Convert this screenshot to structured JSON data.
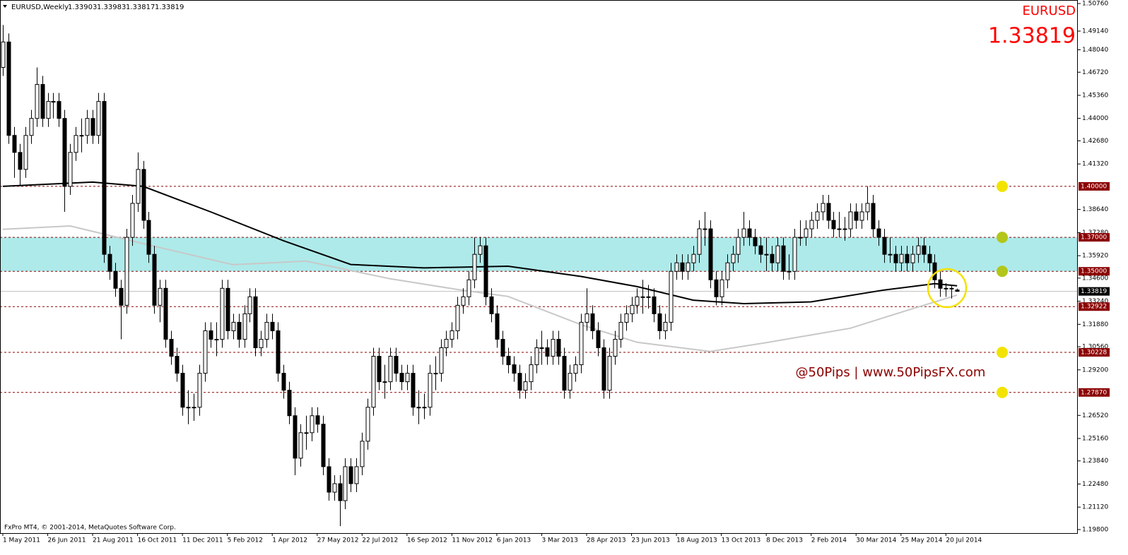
{
  "chart_data": {
    "type": "candlestick",
    "title": "EURUSD,Weekly",
    "symbol": "EURUSD",
    "watermark": "@50Pips | www.50PipsFX.com",
    "footer": "FxPro MT4, © 2001-2014, MetaQuotes Software Corp.",
    "bull_color": "#ffffff",
    "bear_color": "#000000",
    "open": [
      1.47,
      1.485,
      1.43,
      1.42,
      1.41,
      1.43,
      1.44,
      1.46,
      1.44,
      1.45,
      1.45,
      1.44,
      1.4,
      1.42,
      1.43,
      1.43,
      1.44,
      1.43,
      1.45,
      1.36,
      1.35,
      1.34,
      1.33,
      1.37,
      1.39,
      1.41,
      1.38,
      1.36,
      1.33,
      1.34,
      1.31,
      1.3,
      1.29,
      1.27,
      1.27,
      1.27,
      1.29,
      1.315,
      1.31,
      1.31,
      1.34,
      1.315,
      1.32,
      1.31,
      1.325,
      1.335,
      1.305,
      1.31,
      1.32,
      1.315,
      1.29,
      1.28,
      1.265,
      1.24,
      1.255,
      1.255,
      1.265,
      1.26,
      1.235,
      1.22,
      1.225,
      1.215,
      1.235,
      1.225,
      1.235,
      1.25,
      1.27,
      1.3,
      1.285,
      1.285,
      1.3,
      1.29,
      1.285,
      1.29,
      1.27,
      1.27,
      1.27,
      1.29,
      1.29,
      1.305,
      1.31,
      1.315,
      1.33,
      1.335,
      1.345,
      1.36,
      1.365,
      1.335,
      1.325,
      1.31,
      1.3,
      1.295,
      1.29,
      1.28,
      1.285,
      1.295,
      1.305,
      1.305,
      1.3,
      1.31,
      1.3,
      1.28,
      1.29,
      1.295,
      1.32,
      1.325,
      1.315,
      1.305,
      1.28,
      1.3,
      1.31,
      1.32,
      1.325,
      1.33,
      1.335,
      1.335,
      1.335,
      1.325,
      1.315,
      1.32,
      1.35,
      1.355,
      1.35,
      1.355,
      1.36,
      1.375,
      1.375,
      1.345,
      1.335,
      1.345,
      1.355,
      1.36,
      1.37,
      1.375,
      1.37,
      1.365,
      1.36,
      1.36,
      1.355,
      1.365,
      1.35,
      1.35,
      1.37,
      1.37,
      1.375,
      1.38,
      1.385,
      1.39,
      1.38,
      1.375,
      1.375,
      1.375,
      1.385,
      1.38,
      1.385,
      1.39,
      1.375,
      1.37,
      1.36,
      1.36,
      1.355,
      1.36,
      1.355,
      1.36,
      1.365,
      1.36,
      1.355,
      1.345,
      1.34,
      1.34,
      1.33903
    ],
    "high": [
      1.495,
      1.49,
      1.435,
      1.425,
      1.435,
      1.445,
      1.47,
      1.465,
      1.455,
      1.455,
      1.455,
      1.445,
      1.425,
      1.435,
      1.44,
      1.445,
      1.445,
      1.455,
      1.455,
      1.365,
      1.355,
      1.345,
      1.375,
      1.395,
      1.42,
      1.415,
      1.385,
      1.365,
      1.345,
      1.345,
      1.315,
      1.305,
      1.295,
      1.28,
      1.278,
      1.295,
      1.32,
      1.32,
      1.32,
      1.345,
      1.345,
      1.325,
      1.325,
      1.33,
      1.34,
      1.34,
      1.315,
      1.325,
      1.325,
      1.32,
      1.295,
      1.285,
      1.27,
      1.26,
      1.265,
      1.27,
      1.27,
      1.265,
      1.24,
      1.23,
      1.23,
      1.24,
      1.24,
      1.24,
      1.255,
      1.275,
      1.305,
      1.305,
      1.295,
      1.305,
      1.305,
      1.295,
      1.295,
      1.295,
      1.28,
      1.278,
      1.295,
      1.3,
      1.31,
      1.315,
      1.32,
      1.335,
      1.34,
      1.35,
      1.37,
      1.37,
      1.37,
      1.34,
      1.33,
      1.315,
      1.305,
      1.3,
      1.295,
      1.29,
      1.3,
      1.31,
      1.315,
      1.31,
      1.315,
      1.315,
      1.305,
      1.295,
      1.3,
      1.325,
      1.34,
      1.33,
      1.32,
      1.31,
      1.305,
      1.315,
      1.325,
      1.33,
      1.335,
      1.34,
      1.345,
      1.342,
      1.34,
      1.33,
      1.325,
      1.355,
      1.36,
      1.36,
      1.36,
      1.365,
      1.38,
      1.385,
      1.38,
      1.35,
      1.35,
      1.36,
      1.365,
      1.375,
      1.385,
      1.38,
      1.375,
      1.37,
      1.37,
      1.365,
      1.37,
      1.37,
      1.36,
      1.375,
      1.38,
      1.38,
      1.385,
      1.39,
      1.395,
      1.395,
      1.385,
      1.385,
      1.382,
      1.39,
      1.39,
      1.39,
      1.4,
      1.395,
      1.38,
      1.375,
      1.37,
      1.365,
      1.365,
      1.365,
      1.365,
      1.37,
      1.37,
      1.365,
      1.36,
      1.35,
      1.343,
      1.342,
      1.33983
    ],
    "low": [
      1.465,
      1.425,
      1.405,
      1.4,
      1.405,
      1.425,
      1.435,
      1.435,
      1.435,
      1.44,
      1.435,
      1.385,
      1.395,
      1.415,
      1.42,
      1.425,
      1.425,
      1.425,
      1.355,
      1.345,
      1.335,
      1.31,
      1.325,
      1.365,
      1.385,
      1.375,
      1.355,
      1.325,
      1.32,
      1.305,
      1.295,
      1.285,
      1.265,
      1.26,
      1.262,
      1.265,
      1.285,
      1.305,
      1.3,
      1.305,
      1.31,
      1.31,
      1.305,
      1.305,
      1.32,
      1.3,
      1.3,
      1.305,
      1.31,
      1.285,
      1.275,
      1.26,
      1.23,
      1.235,
      1.245,
      1.25,
      1.255,
      1.23,
      1.215,
      1.215,
      1.2,
      1.21,
      1.22,
      1.22,
      1.23,
      1.245,
      1.265,
      1.28,
      1.275,
      1.28,
      1.285,
      1.28,
      1.28,
      1.265,
      1.26,
      1.263,
      1.265,
      1.28,
      1.285,
      1.3,
      1.305,
      1.31,
      1.325,
      1.33,
      1.34,
      1.355,
      1.33,
      1.32,
      1.305,
      1.295,
      1.29,
      1.285,
      1.275,
      1.275,
      1.28,
      1.29,
      1.295,
      1.295,
      1.295,
      1.295,
      1.275,
      1.275,
      1.285,
      1.29,
      1.315,
      1.31,
      1.3,
      1.275,
      1.275,
      1.295,
      1.305,
      1.315,
      1.32,
      1.325,
      1.325,
      1.328,
      1.32,
      1.31,
      1.31,
      1.315,
      1.345,
      1.345,
      1.345,
      1.35,
      1.355,
      1.365,
      1.34,
      1.33,
      1.33,
      1.34,
      1.35,
      1.355,
      1.365,
      1.365,
      1.36,
      1.355,
      1.35,
      1.35,
      1.35,
      1.345,
      1.345,
      1.345,
      1.365,
      1.365,
      1.37,
      1.375,
      1.38,
      1.375,
      1.37,
      1.37,
      1.368,
      1.37,
      1.375,
      1.375,
      1.38,
      1.37,
      1.365,
      1.355,
      1.355,
      1.35,
      1.35,
      1.35,
      1.35,
      1.355,
      1.355,
      1.35,
      1.34,
      1.335,
      1.335,
      1.334,
      1.33817
    ],
    "close": [
      1.485,
      1.43,
      1.42,
      1.41,
      1.43,
      1.44,
      1.46,
      1.44,
      1.45,
      1.45,
      1.44,
      1.4,
      1.42,
      1.43,
      1.43,
      1.44,
      1.43,
      1.45,
      1.36,
      1.35,
      1.34,
      1.33,
      1.37,
      1.39,
      1.41,
      1.38,
      1.36,
      1.33,
      1.34,
      1.31,
      1.3,
      1.29,
      1.27,
      1.27,
      1.27,
      1.29,
      1.315,
      1.31,
      1.31,
      1.34,
      1.315,
      1.32,
      1.31,
      1.325,
      1.335,
      1.305,
      1.31,
      1.32,
      1.315,
      1.29,
      1.28,
      1.265,
      1.24,
      1.255,
      1.255,
      1.265,
      1.26,
      1.235,
      1.22,
      1.225,
      1.215,
      1.235,
      1.225,
      1.235,
      1.25,
      1.27,
      1.3,
      1.285,
      1.285,
      1.3,
      1.29,
      1.285,
      1.29,
      1.27,
      1.27,
      1.27,
      1.29,
      1.29,
      1.305,
      1.31,
      1.315,
      1.33,
      1.335,
      1.345,
      1.36,
      1.365,
      1.335,
      1.325,
      1.31,
      1.3,
      1.295,
      1.29,
      1.28,
      1.285,
      1.295,
      1.305,
      1.305,
      1.3,
      1.31,
      1.3,
      1.28,
      1.29,
      1.295,
      1.32,
      1.325,
      1.315,
      1.305,
      1.28,
      1.3,
      1.31,
      1.32,
      1.325,
      1.33,
      1.335,
      1.335,
      1.335,
      1.325,
      1.315,
      1.32,
      1.35,
      1.355,
      1.35,
      1.355,
      1.36,
      1.375,
      1.375,
      1.345,
      1.335,
      1.345,
      1.355,
      1.36,
      1.37,
      1.375,
      1.37,
      1.365,
      1.36,
      1.36,
      1.355,
      1.365,
      1.35,
      1.35,
      1.37,
      1.37,
      1.375,
      1.38,
      1.385,
      1.39,
      1.38,
      1.375,
      1.375,
      1.375,
      1.385,
      1.38,
      1.385,
      1.39,
      1.375,
      1.37,
      1.36,
      1.36,
      1.355,
      1.36,
      1.355,
      1.36,
      1.365,
      1.36,
      1.355,
      1.345,
      1.34,
      1.34,
      1.34,
      1.33819
    ],
    "xlim": [
      -0.5,
      191.5
    ],
    "xticks": [
      {
        "value": 0,
        "label": "1 May 2011"
      },
      {
        "value": 8,
        "label": "26 Jun 2011"
      },
      {
        "value": 16,
        "label": "21 Aug 2011"
      },
      {
        "value": 24,
        "label": "16 Oct 2011"
      },
      {
        "value": 32,
        "label": "11 Dec 2011"
      },
      {
        "value": 40,
        "label": "5 Feb 2012"
      },
      {
        "value": 48,
        "label": "1 Apr 2012"
      },
      {
        "value": 56,
        "label": "27 May 2012"
      },
      {
        "value": 64,
        "label": "22 Jul 2012"
      },
      {
        "value": 72,
        "label": "16 Sep 2012"
      },
      {
        "value": 80,
        "label": "11 Nov 2012"
      },
      {
        "value": 88,
        "label": "6 Jan 2013"
      },
      {
        "value": 96,
        "label": "3 Mar 2013"
      },
      {
        "value": 104,
        "label": "28 Apr 2013"
      },
      {
        "value": 112,
        "label": "23 Jun 2013"
      },
      {
        "value": 120,
        "label": "18 Aug 2013"
      },
      {
        "value": 128,
        "label": "13 Oct 2013"
      },
      {
        "value": 136,
        "label": "8 Dec 2013"
      },
      {
        "value": 144,
        "label": "2 Feb 2014"
      },
      {
        "value": 152,
        "label": "30 Mar 2014"
      },
      {
        "value": 160,
        "label": "25 May 2014"
      },
      {
        "value": 168,
        "label": "20 Jul 2014"
      }
    ],
    "ylim": [
      1.1959,
      1.5097
    ],
    "yticks": [
      {
        "value": 1.5076,
        "label": "1.50760"
      },
      {
        "value": 1.4914,
        "label": "1.49140"
      },
      {
        "value": 1.4804,
        "label": "1.48040"
      },
      {
        "value": 1.4672,
        "label": "1.46720"
      },
      {
        "value": 1.4536,
        "label": "1.45360"
      },
      {
        "value": 1.44,
        "label": "1.44000"
      },
      {
        "value": 1.4268,
        "label": "1.42680"
      },
      {
        "value": 1.4132,
        "label": "1.41320"
      },
      {
        "value": 1.3864,
        "label": "1.38640"
      },
      {
        "value": 1.3728,
        "label": "1.37280"
      },
      {
        "value": 1.3592,
        "label": "1.35920"
      },
      {
        "value": 1.346,
        "label": "1.34600"
      },
      {
        "value": 1.3324,
        "label": "1.33240"
      },
      {
        "value": 1.3188,
        "label": "1.31880"
      },
      {
        "value": 1.3056,
        "label": "1.30560"
      },
      {
        "value": 1.292,
        "label": "1.29200"
      },
      {
        "value": 1.2652,
        "label": "1.26520"
      },
      {
        "value": 1.2516,
        "label": "1.25160"
      },
      {
        "value": 1.2384,
        "label": "1.23840"
      },
      {
        "value": 1.2248,
        "label": "1.22480"
      },
      {
        "value": 1.2112,
        "label": "1.21120"
      },
      {
        "value": 1.198,
        "label": "1.19800"
      }
    ],
    "grid": false,
    "zone": {
      "range": [
        1.35,
        1.37
      ],
      "color": "#aeeaea"
    },
    "levels": [
      {
        "value": 1.4,
        "label": "1.40000",
        "marker": "#f2e400"
      },
      {
        "value": 1.37,
        "label": "1.37000",
        "marker": "#b3c61a"
      },
      {
        "value": 1.35,
        "label": "1.35000",
        "marker": "#b3c61a"
      },
      {
        "value": 1.32922,
        "label": "1.32922"
      },
      {
        "value": 1.30228,
        "label": "1.30228",
        "marker": "#f2e400"
      },
      {
        "value": 1.2787,
        "label": "1.27870",
        "marker": "#f2e400"
      }
    ],
    "level_color": "#8b0000",
    "moving_averages": [
      {
        "color": "#000000",
        "x": [
          0,
          16,
          25,
          37,
          50,
          62,
          75,
          90,
          103,
          113,
          123,
          132,
          144,
          157,
          166,
          170
        ],
        "values": [
          1.4,
          1.4025,
          1.4,
          1.385,
          1.368,
          1.354,
          1.352,
          1.353,
          1.347,
          1.341,
          1.333,
          1.331,
          1.332,
          1.339,
          1.3427,
          1.3415
        ]
      },
      {
        "color": "#c8c8c8",
        "x": [
          0,
          12,
          25,
          41,
          54,
          69,
          81,
          90,
          103,
          113,
          126,
          136,
          151,
          161,
          170
        ],
        "values": [
          1.3747,
          1.3767,
          1.3663,
          1.3539,
          1.356,
          1.3456,
          1.3393,
          1.3352,
          1.3186,
          1.3082,
          1.3028,
          1.308,
          1.3165,
          1.3269,
          1.336
        ]
      }
    ]
  }
}
